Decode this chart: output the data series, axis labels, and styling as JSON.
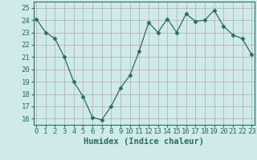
{
  "x": [
    0,
    1,
    2,
    3,
    4,
    5,
    6,
    7,
    8,
    9,
    10,
    11,
    12,
    13,
    14,
    15,
    16,
    17,
    18,
    19,
    20,
    21,
    22,
    23
  ],
  "y": [
    24.1,
    23.0,
    22.5,
    21.0,
    19.0,
    17.8,
    16.1,
    15.9,
    17.0,
    18.5,
    19.5,
    21.5,
    23.8,
    23.0,
    24.1,
    23.0,
    24.5,
    23.9,
    24.0,
    24.8,
    23.5,
    22.8,
    22.5,
    21.2
  ],
  "line_color": "#2d6b5e",
  "marker": "D",
  "marker_size": 2.5,
  "bg_color": "#ceeaea",
  "grid_color": "#b8a8a8",
  "xlabel": "Humidex (Indice chaleur)",
  "xlabel_fontsize": 7.5,
  "tick_fontsize": 6.5,
  "ylim": [
    15.5,
    25.5
  ],
  "yticks": [
    16,
    17,
    18,
    19,
    20,
    21,
    22,
    23,
    24,
    25
  ],
  "xticks": [
    0,
    1,
    2,
    3,
    4,
    5,
    6,
    7,
    8,
    9,
    10,
    11,
    12,
    13,
    14,
    15,
    16,
    17,
    18,
    19,
    20,
    21,
    22,
    23
  ],
  "xlim": [
    -0.3,
    23.3
  ]
}
